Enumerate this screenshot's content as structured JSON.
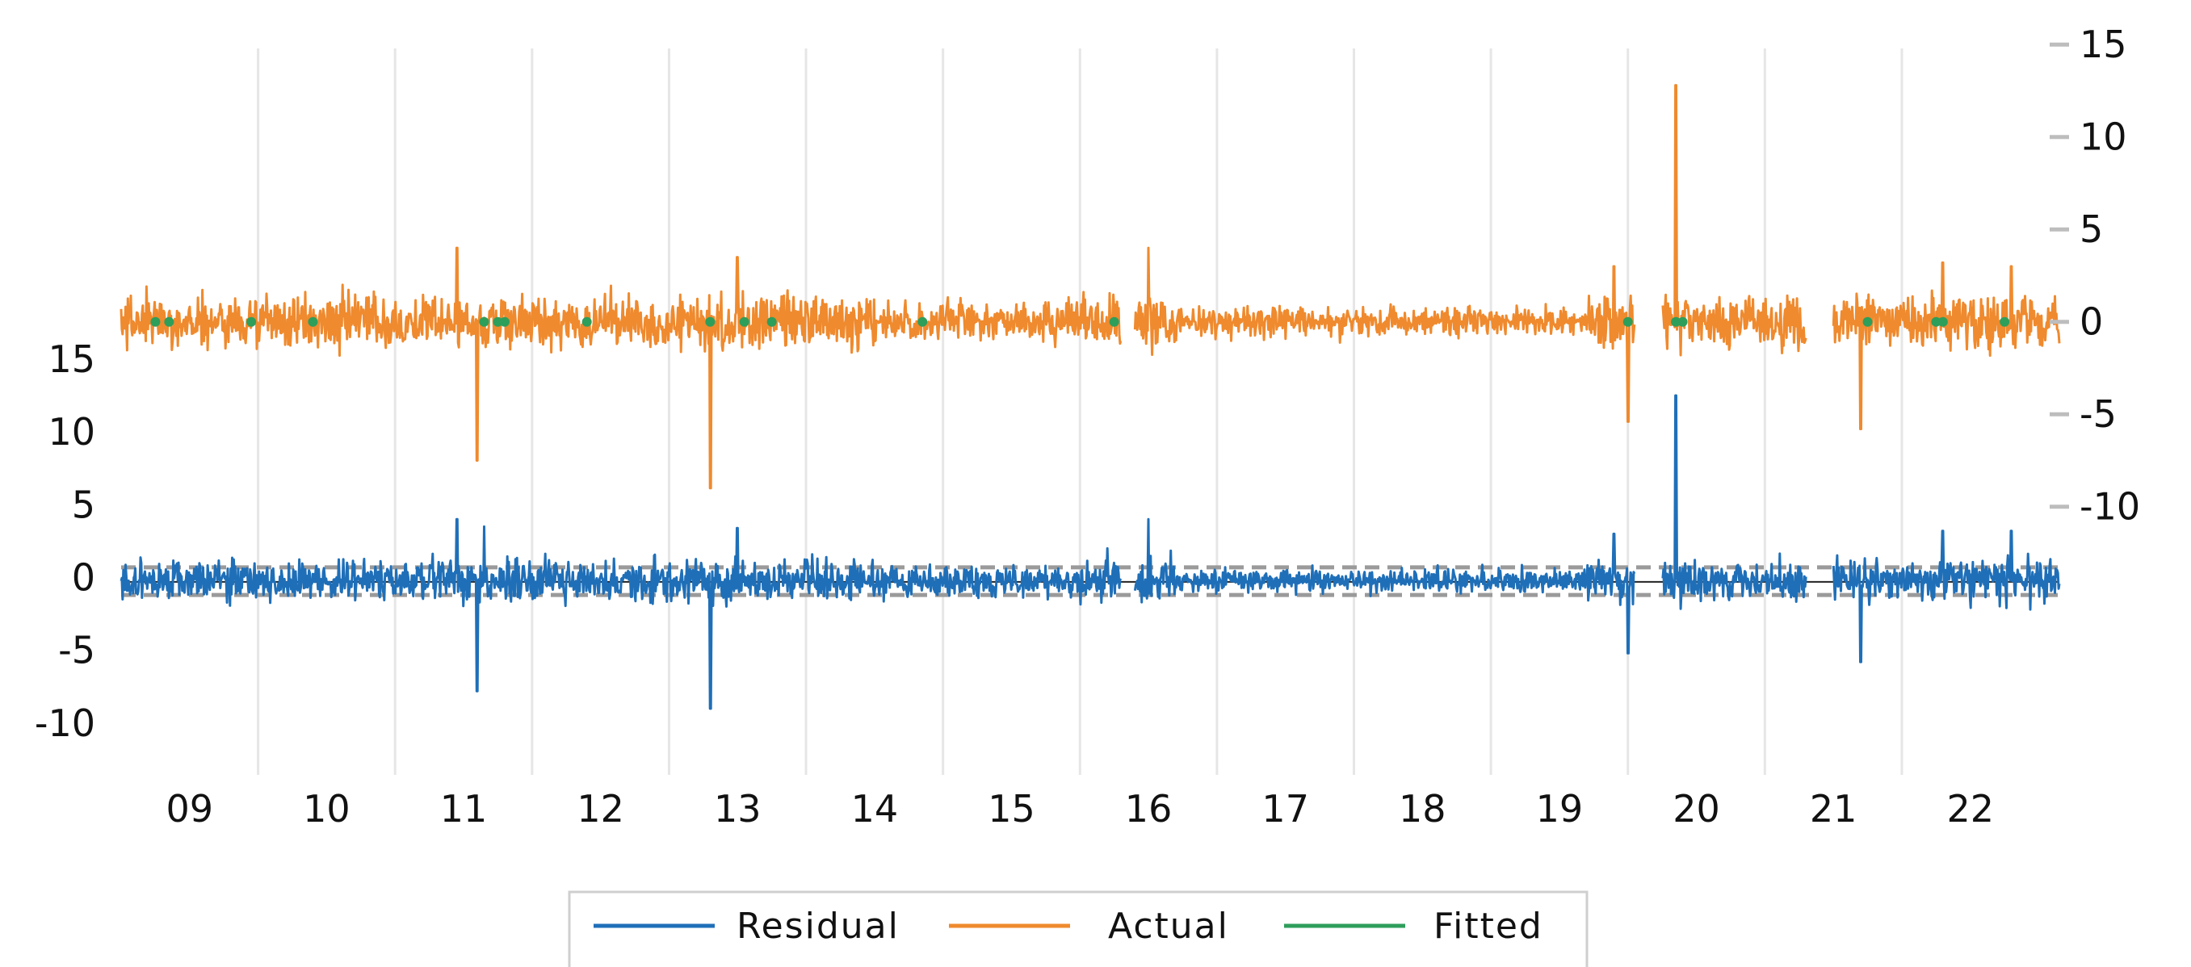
{
  "chart_data": {
    "type": "line",
    "title": "",
    "xlabel": "",
    "ylabel": "",
    "x_range": [
      2008.5,
      2022.65
    ],
    "x_ticks": [
      "09",
      "10",
      "11",
      "12",
      "13",
      "14",
      "15",
      "16",
      "17",
      "18",
      "19",
      "20",
      "21",
      "22"
    ],
    "left_axis": {
      "ylim": [
        -10,
        18
      ],
      "ticks": [
        "15",
        "10",
        "5",
        "0",
        "-5",
        "-10"
      ]
    },
    "right_axis": {
      "ylim": [
        -16,
        16
      ],
      "ticks": [
        "15",
        "10",
        "5",
        "0",
        "-5",
        "-10"
      ]
    },
    "grid": {
      "vertical": true,
      "horizontal": false
    },
    "legend": {
      "placement": "bottom-center"
    },
    "colors": {
      "residual": "#1f6fb8",
      "actual": "#ef8a2e",
      "fitted": "#2e9e5b",
      "grid": "#e6e6e6",
      "band": "#9a9a9a"
    },
    "series": [
      {
        "name": "Residual",
        "axis": "left",
        "style": "noise",
        "center": -0.2,
        "spikes": [
          [
            2010.95,
            4.0
          ],
          [
            2011.1,
            -7.8
          ],
          [
            2011.15,
            3.5
          ],
          [
            2012.8,
            -9.0
          ],
          [
            2013.0,
            3.4
          ],
          [
            2015.7,
            2.0
          ],
          [
            2016.0,
            4.0
          ],
          [
            2019.4,
            3.0
          ],
          [
            2019.5,
            -5.2
          ],
          [
            2019.85,
            12.5
          ],
          [
            2021.2,
            -5.8
          ],
          [
            2021.8,
            3.2
          ],
          [
            2022.3,
            3.2
          ]
        ]
      },
      {
        "name": "Actual",
        "axis": "right",
        "style": "noise",
        "center": 0,
        "spikes": [
          [
            2010.95,
            4.0
          ],
          [
            2011.1,
            -7.5
          ],
          [
            2012.8,
            -9.0
          ],
          [
            2013.0,
            3.5
          ],
          [
            2016.0,
            4.0
          ],
          [
            2019.4,
            3.0
          ],
          [
            2019.5,
            -5.4
          ],
          [
            2019.85,
            12.8
          ],
          [
            2021.2,
            -5.8
          ],
          [
            2021.8,
            3.2
          ],
          [
            2022.3,
            3.0
          ]
        ]
      },
      {
        "name": "Fitted",
        "axis": "right",
        "style": "dots",
        "points": [
          [
            2008.75,
            0
          ],
          [
            2008.85,
            0
          ],
          [
            2009.45,
            0
          ],
          [
            2009.9,
            0
          ],
          [
            2011.15,
            0
          ],
          [
            2011.25,
            0
          ],
          [
            2011.3,
            0
          ],
          [
            2011.9,
            0
          ],
          [
            2012.8,
            0
          ],
          [
            2013.05,
            0
          ],
          [
            2013.25,
            0
          ],
          [
            2014.35,
            0
          ],
          [
            2015.75,
            0
          ],
          [
            2019.5,
            0
          ],
          [
            2019.85,
            0
          ],
          [
            2019.9,
            0
          ],
          [
            2021.25,
            0
          ],
          [
            2021.75,
            0
          ],
          [
            2021.8,
            0
          ],
          [
            2022.25,
            0
          ]
        ]
      }
    ],
    "gaps": [
      [
        2015.8,
        2015.9
      ],
      [
        2019.55,
        2019.75
      ],
      [
        2020.8,
        2021.0
      ]
    ]
  }
}
